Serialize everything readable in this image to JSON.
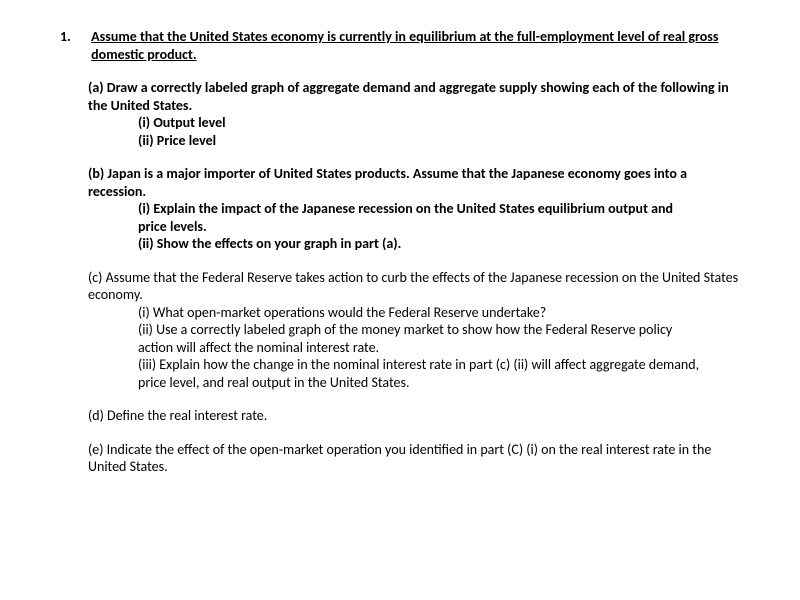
{
  "question": {
    "number": "1.",
    "title": "Assume that the United States economy is currently in equilibrium at the full-employment level of real gross domestic product.",
    "parts": {
      "a": {
        "lead": "(a) Draw a correctly labeled graph of aggregate demand and aggregate supply showing each of the following in the United States.",
        "i": "(i) Output level",
        "ii": "(ii) Price level"
      },
      "b": {
        "lead": "(b) Japan is a major importer of United States products. Assume that the Japanese economy goes into a recession.",
        "i": "(i) Explain the impact of the Japanese recession on the United States equilibrium output and price levels.",
        "ii": "(ii) Show the effects on your graph in part (a)."
      },
      "c": {
        "lead": "(c) Assume that the Federal Reserve takes action to curb the effects of the Japanese recession on the United States economy.",
        "i": "(i) What open-market operations would the Federal Reserve undertake?",
        "ii": "(ii) Use a correctly labeled graph of the money market to show how the Federal Reserve policy action will affect the nominal interest rate.",
        "iii": "(iii) Explain how the change in the nominal interest rate in part (c) (ii) will affect aggregate demand, price level, and real output in the United States."
      },
      "d": {
        "lead": "(d) Define the real interest rate."
      },
      "e": {
        "lead": "(e) Indicate the effect of the open-market operation you identified in part (C) (i) on the real interest rate in the United States."
      }
    }
  }
}
